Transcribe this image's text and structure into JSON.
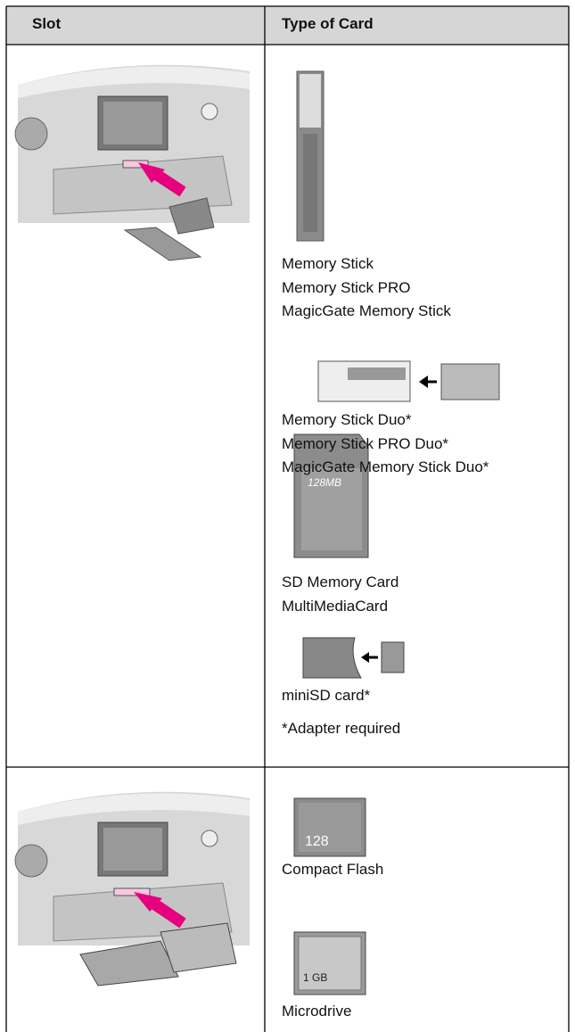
{
  "table": {
    "header": [
      "Slot",
      "Type of Card"
    ],
    "rows": [
      {
        "cards": [
          {
            "names": [
              "Memory Stick",
              "Memory Stick PRO",
              "MagicGate Memory Stick"
            ]
          },
          {
            "names": [
              "Memory Stick Duo*",
              "Memory Stick PRO Duo*",
              "MagicGate Memory Stick Duo*"
            ]
          },
          {
            "names": [
              "SD Memory Card",
              "MultiMediaCard"
            ],
            "label": "128MB"
          },
          {
            "names": [
              "miniSD card*"
            ]
          }
        ],
        "note": "*Adapter required"
      },
      {
        "cards": [
          {
            "names": [
              "Compact Flash"
            ],
            "label": "128"
          },
          {
            "names": [
              "Microdrive"
            ],
            "label": "1 GB"
          }
        ]
      }
    ]
  }
}
